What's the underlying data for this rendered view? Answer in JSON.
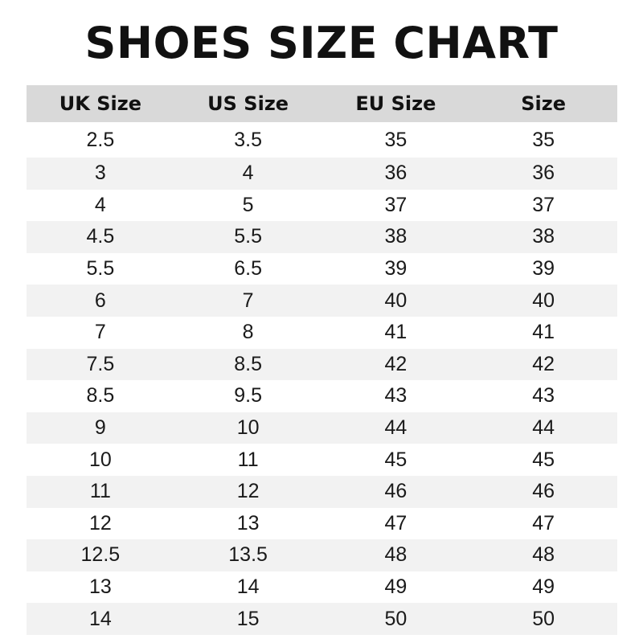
{
  "title": "SHOES SIZE CHART",
  "colors": {
    "header_bg": "#d9d9d9",
    "alt_row_bg": "#f2f2f2",
    "row_bg": "#ffffff",
    "text": "#1a1a1a"
  },
  "chart_data": {
    "type": "table",
    "title": "SHOES SIZE CHART",
    "columns": [
      "UK Size",
      "US Size",
      "EU Size",
      "Size"
    ],
    "rows": [
      [
        "2.5",
        "3.5",
        "35",
        "35"
      ],
      [
        "3",
        "4",
        "36",
        "36"
      ],
      [
        "4",
        "5",
        "37",
        "37"
      ],
      [
        "4.5",
        "5.5",
        "38",
        "38"
      ],
      [
        "5.5",
        "6.5",
        "39",
        "39"
      ],
      [
        "6",
        "7",
        "40",
        "40"
      ],
      [
        "7",
        "8",
        "41",
        "41"
      ],
      [
        "7.5",
        "8.5",
        "42",
        "42"
      ],
      [
        "8.5",
        "9.5",
        "43",
        "43"
      ],
      [
        "9",
        "10",
        "44",
        "44"
      ],
      [
        "10",
        "11",
        "45",
        "45"
      ],
      [
        "11",
        "12",
        "46",
        "46"
      ],
      [
        "12",
        "13",
        "47",
        "47"
      ],
      [
        "12.5",
        "13.5",
        "48",
        "48"
      ],
      [
        "13",
        "14",
        "49",
        "49"
      ],
      [
        "14",
        "15",
        "50",
        "50"
      ]
    ]
  }
}
